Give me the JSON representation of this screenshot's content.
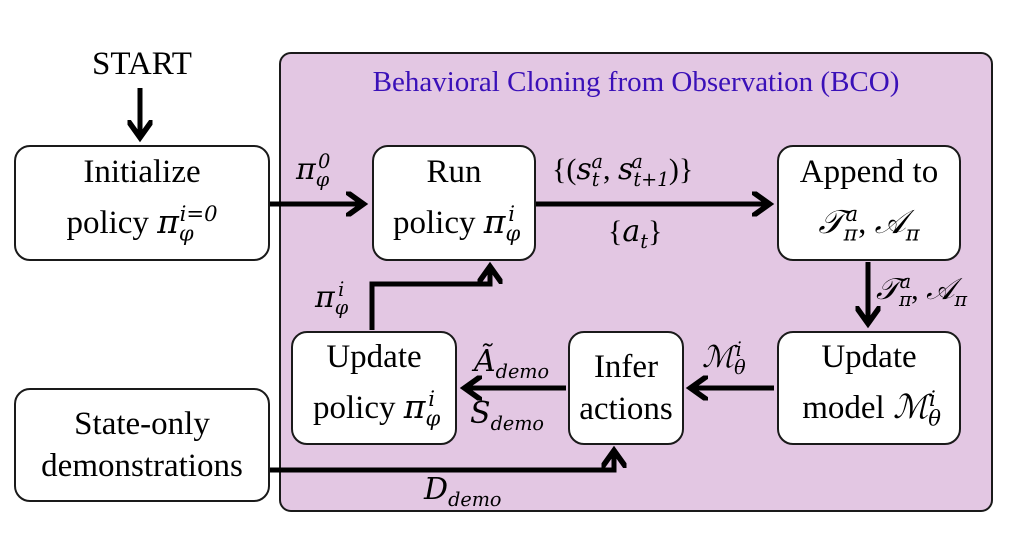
{
  "start": "START",
  "region_title": "Behavioral Cloning from Observation (BCO)",
  "boxes": {
    "init": {
      "line1": "Initialize",
      "line2_text": "policy ",
      "line2_math": "π",
      "line2_sub": "φ",
      "line2_sup": "i=0"
    },
    "run": {
      "line1": "Run",
      "line2_text": "policy ",
      "line2_math": "π",
      "line2_sub": "φ",
      "line2_sup": "i"
    },
    "append": {
      "line1": "Append to",
      "line2_math1": "𝒯",
      "line2_sub1": "π",
      "line2_sup1": "a",
      "line2_sep": ", ",
      "line2_math2": "𝒜",
      "line2_sub2": "π"
    },
    "update_model": {
      "line1": "Update",
      "line2_text": "model ",
      "line2_math": "ℳ",
      "line2_sub": "θ",
      "line2_sup": "i"
    },
    "infer": {
      "line1": "Infer",
      "line2": "actions"
    },
    "update_policy": {
      "line1": "Update",
      "line2_text": "policy ",
      "line2_math": "π",
      "line2_sub": "φ",
      "line2_sup": "i"
    },
    "demos": {
      "line1": "State-only",
      "line2": "demonstrations"
    }
  },
  "labels": {
    "pi0": {
      "math": "π",
      "sub": "φ",
      "sup": "0"
    },
    "states": {
      "open": "{(",
      "s1": "s",
      "s1_sub": "t",
      "s1_sup": "a",
      "sep": ", ",
      "s2": "s",
      "s2_sub": "t+1",
      "s2_sup": "a",
      "close": ")}"
    },
    "actions_at": {
      "open": "{",
      "math": "a",
      "sub": "t",
      "close": "}"
    },
    "tpi_api": {
      "math1": "𝒯",
      "sub1": "π",
      "sup1": "a",
      "sep": ", ",
      "math2": "𝒜",
      "sub2": "π"
    },
    "m_theta": {
      "math": "ℳ",
      "sub": "θ",
      "sup": "i"
    },
    "a_demo": {
      "math": "Ã",
      "sub": "demo"
    },
    "s_demo": {
      "math": "S",
      "sub": "demo"
    },
    "pi_i": {
      "math": "π",
      "sub": "φ",
      "sup": "i"
    },
    "d_demo": {
      "math": "D",
      "sub": "demo"
    }
  }
}
